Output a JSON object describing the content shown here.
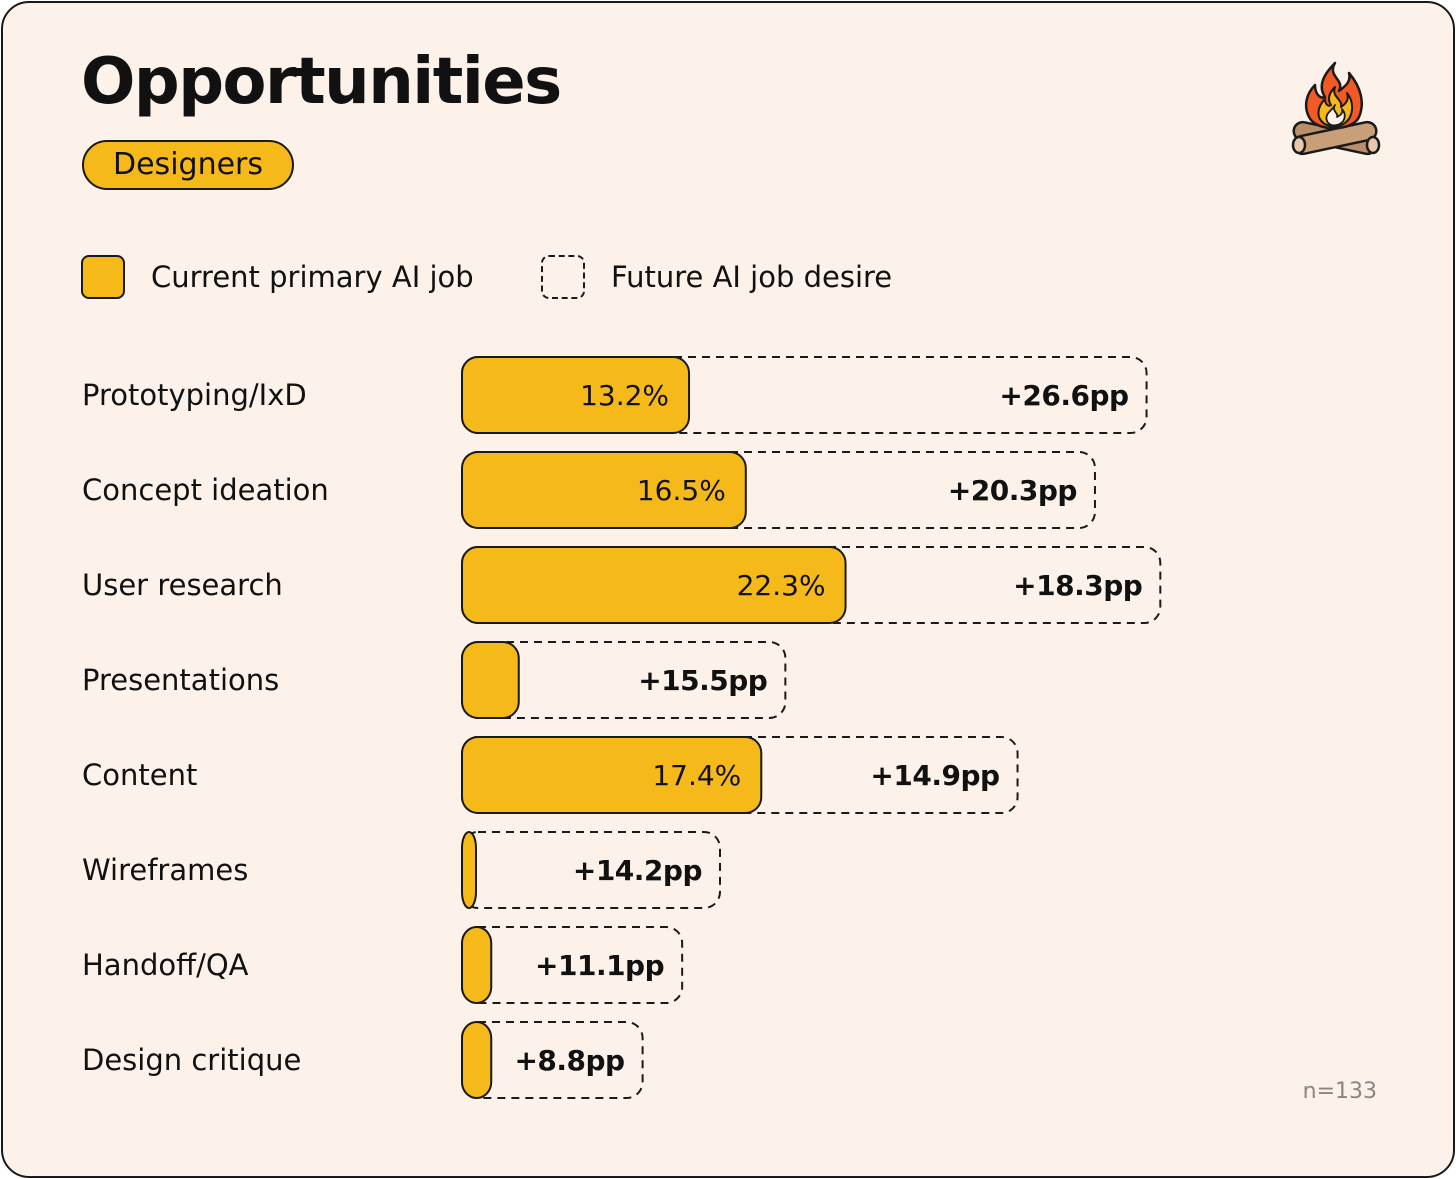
{
  "header": {
    "title": "Opportunities",
    "segment": "Designers"
  },
  "legend": {
    "current": "Current primary AI job",
    "future": "Future AI job desire"
  },
  "sample": "n=133",
  "colors": {
    "bar_fill": "#f6b91a",
    "background": "#fdf2e9",
    "stroke": "#1a1a1a"
  },
  "logo_icon": "campfire-icon",
  "chart_data": {
    "type": "bar",
    "orientation": "horizontal",
    "stacked": true,
    "categories": [
      "Prototyping/IxD",
      "Concept ideation",
      "User research",
      "Presentations",
      "Content",
      "Wireframes",
      "Handoff/QA",
      "Design critique"
    ],
    "series": [
      {
        "name": "Current primary AI job",
        "values": [
          13.2,
          16.5,
          22.3,
          3.3,
          17.4,
          0.8,
          1.7,
          1.7
        ],
        "labels": [
          "13.2%",
          "16.5%",
          "22.3%",
          "",
          "17.4%",
          "",
          "",
          ""
        ]
      },
      {
        "name": "Future AI job desire",
        "values": [
          26.6,
          20.3,
          18.3,
          15.5,
          14.9,
          14.2,
          11.1,
          8.8
        ],
        "labels": [
          "+26.6pp",
          "+20.3pp",
          "+18.3pp",
          "+15.5pp",
          "+14.9pp",
          "+14.2pp",
          "+11.1pp",
          "+8.8pp"
        ]
      }
    ],
    "xlim": [
      0,
      40
    ],
    "grid": false,
    "legend_position": "top-left"
  }
}
